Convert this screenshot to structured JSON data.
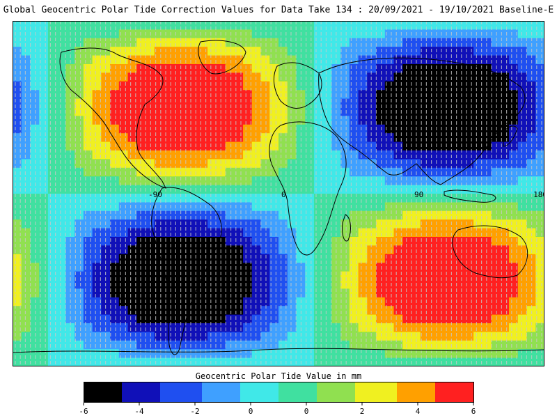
{
  "title": "Global Geocentric Polar Tide Correction Values for Data Take 134 : 20/09/2021 - 19/10/2021 Baseline-E",
  "map": {
    "type": "heatmap",
    "projection": "equirectangular",
    "lon_range": [
      -180,
      180
    ],
    "lat_range": [
      -90,
      90
    ],
    "longitude_labels": [
      "-90",
      "0",
      "90",
      "180"
    ],
    "longitude_label_values": [
      -90,
      0,
      90,
      180
    ],
    "colorbar_title": "Geocentric Polar Tide Value in mm",
    "colorbar_ticks": [
      "-6",
      "-4",
      "-2",
      "0",
      "0",
      "2",
      "4",
      "6"
    ],
    "value_range": [
      -6,
      6
    ],
    "colormap": [
      "#000000",
      "#1010b8",
      "#1f4ff0",
      "#3fa0ff",
      "#40e8e8",
      "#40e0a0",
      "#90e050",
      "#f0f020",
      "#ffa000",
      "#ff2020"
    ],
    "track_color": "#c8c8c8",
    "coast_color": "#000000"
  }
}
